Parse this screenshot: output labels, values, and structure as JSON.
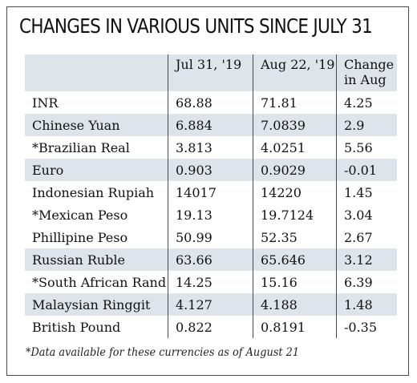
{
  "chart_data": {
    "type": "table",
    "title": "CHANGES IN VARIOUS UNITS SINCE JULY 31",
    "columns": [
      "",
      "Jul 31, '19",
      "Aug 22, '19",
      "Change in Aug"
    ],
    "rows": [
      [
        "INR",
        "68.88",
        "71.81",
        "4.25"
      ],
      [
        "Chinese Yuan",
        "6.884",
        "7.0839",
        "2.9"
      ],
      [
        "*Brazilian Real",
        "3.813",
        "4.0251",
        "5.56"
      ],
      [
        "Euro",
        "0.903",
        "0.9029",
        "-0.01"
      ],
      [
        "Indonesian Rupiah",
        "14017",
        "14220",
        "1.45"
      ],
      [
        "*Mexican Peso",
        "19.13",
        "19.7124",
        "3.04"
      ],
      [
        "Phillipine Peso",
        "50.99",
        "52.35",
        "2.67"
      ],
      [
        "Russian Ruble",
        "63.66",
        "65.646",
        "3.12"
      ],
      [
        "*South African Rand",
        "14.25",
        "15.16",
        "6.39"
      ],
      [
        "Malaysian Ringgit",
        "4.127",
        "4.188",
        "1.48"
      ],
      [
        "British Pound",
        "0.822",
        "0.8191",
        "-0.35"
      ]
    ],
    "shaded_row_indices": [
      1,
      3,
      7,
      9
    ],
    "header_shaded": true
  },
  "footnote": "*Data available for these currencies as of August 21",
  "colors": {
    "shade": "#dfe3ea",
    "border": "#4a4a4a",
    "text": "#111111"
  }
}
